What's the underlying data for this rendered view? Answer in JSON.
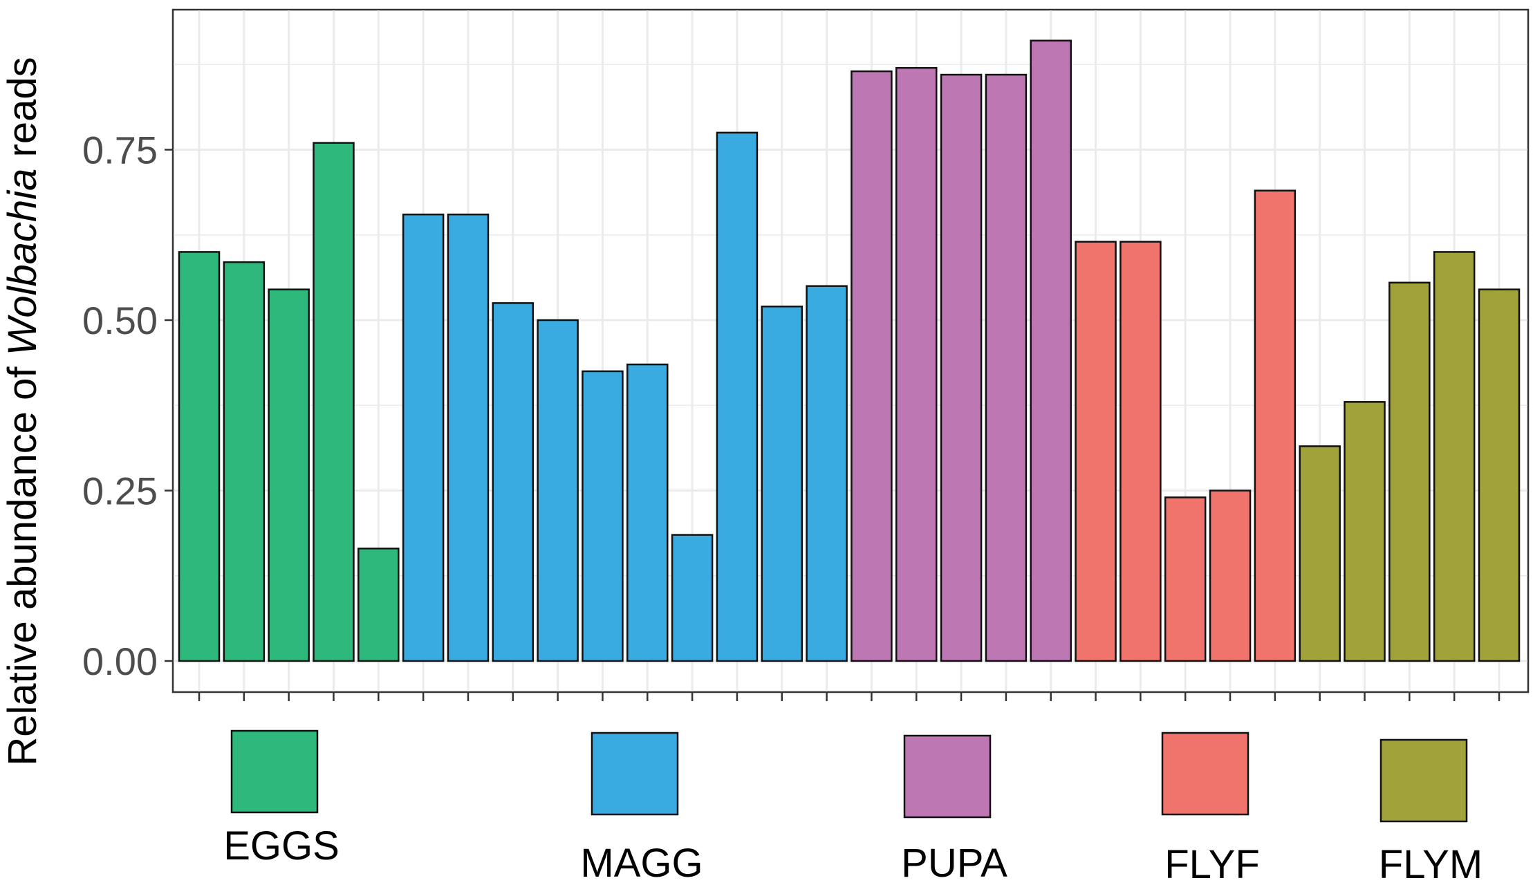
{
  "chart_data": {
    "type": "bar",
    "title": "",
    "xlabel": "",
    "ylabel_parts": [
      "Relative abundance of ",
      "Wolbachia",
      " reads"
    ],
    "ylim": [
      0,
      0.95
    ],
    "yticks": [
      "0.00",
      "0.25",
      "0.50",
      "0.75"
    ],
    "ytick_values": [
      0,
      0.25,
      0.5,
      0.75
    ],
    "grid": true,
    "legend_position": "bottom",
    "groups": [
      {
        "name": "EGGS",
        "color": "#2eb87b",
        "values": [
          0.6,
          0.585,
          0.545,
          0.76,
          0.165
        ]
      },
      {
        "name": "MAGG",
        "color": "#3aabe1",
        "values": [
          0.655,
          0.655,
          0.525,
          0.5,
          0.425,
          0.435,
          0.185,
          0.775,
          0.52,
          0.55
        ]
      },
      {
        "name": "PUPA",
        "color": "#bd77b2",
        "values": [
          0.865,
          0.87,
          0.86,
          0.86,
          0.91
        ]
      },
      {
        "name": "FLYF",
        "color": "#f0746c",
        "values": [
          0.615,
          0.615,
          0.24,
          0.25,
          0.69
        ]
      },
      {
        "name": "FLYM",
        "color": "#a1a33a",
        "values": [
          0.315,
          0.38,
          0.555,
          0.6,
          0.545
        ]
      }
    ]
  }
}
